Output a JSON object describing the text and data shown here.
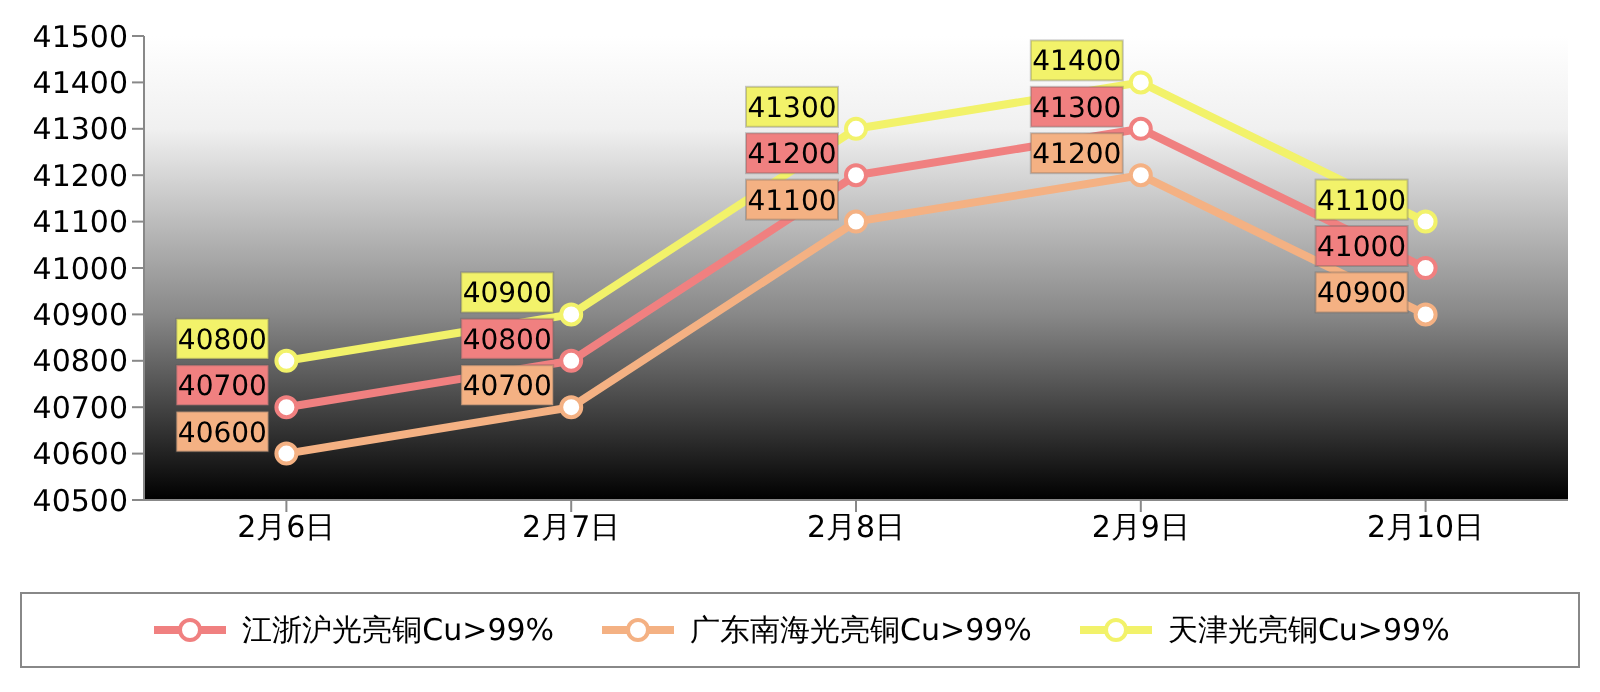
{
  "chart_data": {
    "type": "line",
    "categories": [
      "2月6日",
      "2月7日",
      "2月8日",
      "2月9日",
      "2月10日"
    ],
    "series": [
      {
        "name": "江浙沪光亮铜Cu>99%",
        "color": "#f08080",
        "values": [
          40700,
          40800,
          41200,
          41300,
          41000
        ]
      },
      {
        "name": "广东南海光亮铜Cu>99%",
        "color": "#f4b183",
        "values": [
          40600,
          40700,
          41100,
          41200,
          40900
        ]
      },
      {
        "name": "天津光亮铜Cu>99%",
        "color": "#f2f26a",
        "values": [
          40800,
          40900,
          41300,
          41400,
          41100
        ]
      }
    ],
    "ylim": [
      40500,
      41500
    ],
    "yticks": [
      40500,
      40600,
      40700,
      40800,
      40900,
      41000,
      41100,
      41200,
      41300,
      41400,
      41500
    ],
    "grid": false,
    "legend": "bottom",
    "marker": "circle",
    "line_style": "solid",
    "data_labels": true
  }
}
